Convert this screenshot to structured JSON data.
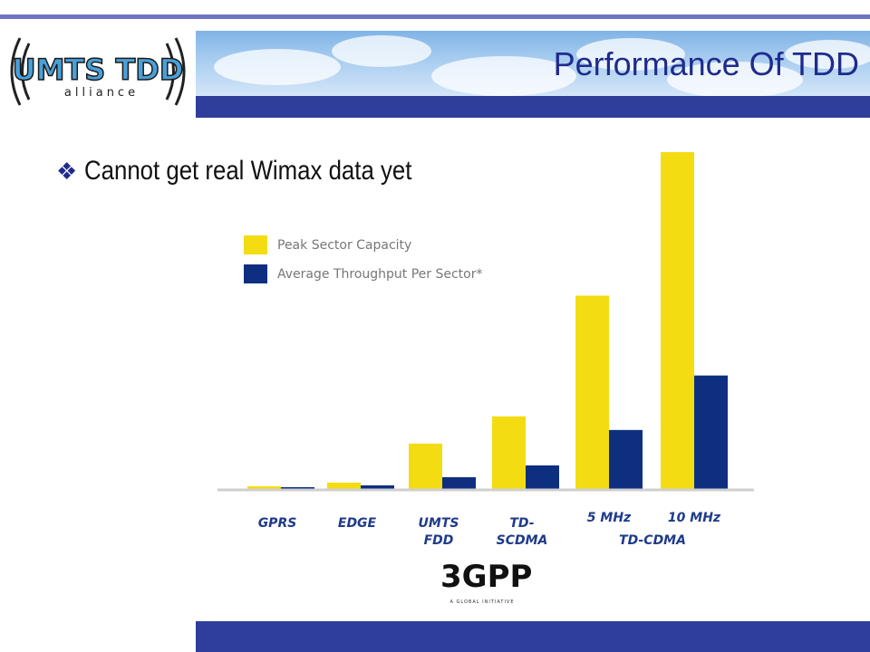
{
  "slide": {
    "title": "Performance Of TDD",
    "bullet": "Cannot get real Wimax data yet"
  },
  "logo": {
    "name": "UMTS TDD",
    "subtitle": "alliance"
  },
  "footer_logo": {
    "name": "3GPP",
    "tagline": "A GLOBAL INITIATIVE"
  },
  "colors": {
    "peak": "#f4dc13",
    "average": "#0e2f80",
    "header_blue": "#2e3e9a",
    "title_blue": "#1f2b8c",
    "top_rule": "#6f73c4"
  },
  "chart_data": {
    "type": "bar",
    "title": "",
    "xlabel": "",
    "ylabel": "",
    "grid": false,
    "legend_position": "top-left",
    "groups": [
      {
        "line1": "GPRS",
        "line2": ""
      },
      {
        "line1": "EDGE",
        "line2": ""
      },
      {
        "line1": "UMTS",
        "line2": "FDD"
      },
      {
        "line1": "TD-",
        "line2": "SCDMA"
      },
      {
        "line1": "5 MHz",
        "line2": ""
      },
      {
        "line1": "10 MHz",
        "line2": ""
      }
    ],
    "group_caption": "TD-CDMA",
    "series": [
      {
        "name": "Peak Sector Capacity",
        "values": [
          4,
          8,
          51,
          81,
          214,
          372
        ]
      },
      {
        "name": "Average Throughput Per Sector*",
        "values": [
          3,
          5,
          14,
          27,
          66,
          126
        ]
      }
    ],
    "ylim": [
      0,
      380
    ]
  }
}
